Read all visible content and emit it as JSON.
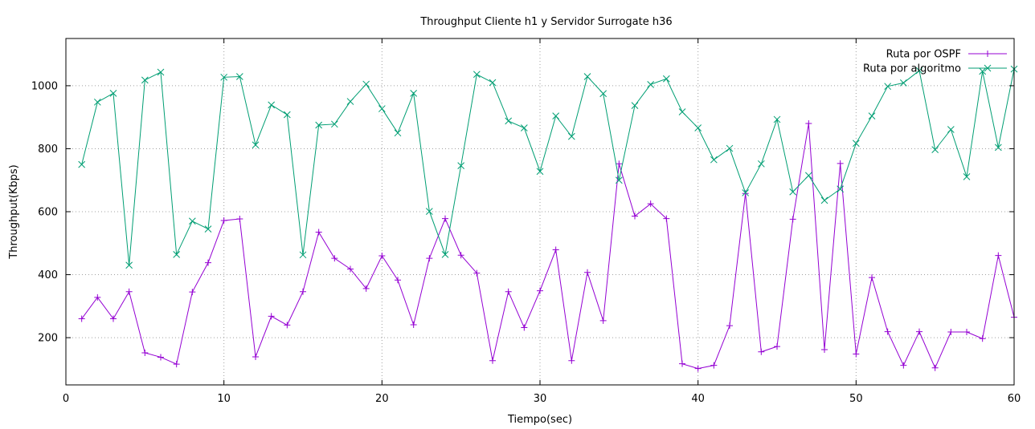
{
  "chart_data": {
    "type": "line",
    "title": "Throughput Cliente h1 y Servidor Surrogate h36",
    "xlabel": "Tiempo(sec)",
    "ylabel": "Throughput(Kbps)",
    "xlim": [
      0,
      60
    ],
    "ylim": [
      50,
      1150
    ],
    "x_ticks": [
      0,
      10,
      20,
      30,
      40,
      50,
      60
    ],
    "y_ticks": [
      200,
      400,
      600,
      800,
      1000
    ],
    "grid": true,
    "legend_position": "top-right",
    "x": [
      1,
      2,
      3,
      4,
      5,
      6,
      7,
      8,
      9,
      10,
      11,
      12,
      13,
      14,
      15,
      16,
      17,
      18,
      19,
      20,
      21,
      22,
      23,
      24,
      25,
      26,
      27,
      28,
      29,
      30,
      31,
      32,
      33,
      34,
      35,
      36,
      37,
      38,
      39,
      40,
      41,
      42,
      43,
      44,
      45,
      46,
      47,
      48,
      49,
      50,
      51,
      52,
      53,
      54,
      55,
      56,
      57,
      58,
      59,
      60
    ],
    "series": [
      {
        "name": "Ruta por OSPF",
        "color": "#9400d3",
        "marker": "plus",
        "values": [
          260,
          328,
          260,
          346,
          152,
          138,
          116,
          345,
          438,
          572,
          577,
          139,
          268,
          240,
          346,
          535,
          452,
          418,
          356,
          460,
          383,
          241,
          452,
          578,
          462,
          405,
          127,
          346,
          232,
          349,
          479,
          127,
          407,
          254,
          752,
          586,
          625,
          578,
          117,
          102,
          112,
          238,
          658,
          155,
          172,
          576,
          880,
          162,
          753,
          148,
          391,
          219,
          112,
          219,
          104,
          218,
          218,
          197,
          461,
          265
        ]
      },
      {
        "name": "Ruta por algoritmo",
        "color": "#009e73",
        "marker": "x",
        "values": [
          750,
          948,
          976,
          430,
          1018,
          1043,
          464,
          570,
          545,
          1027,
          1029,
          812,
          939,
          908,
          463,
          875,
          878,
          950,
          1005,
          927,
          850,
          976,
          601,
          464,
          746,
          1036,
          1010,
          888,
          866,
          728,
          904,
          839,
          1029,
          975,
          700,
          937,
          1004,
          1022,
          917,
          866,
          765,
          801,
          660,
          752,
          893,
          663,
          715,
          636,
          672,
          817,
          904,
          998,
          1009,
          1048,
          797,
          861,
          711,
          1046,
          804,
          1053
        ]
      }
    ]
  }
}
